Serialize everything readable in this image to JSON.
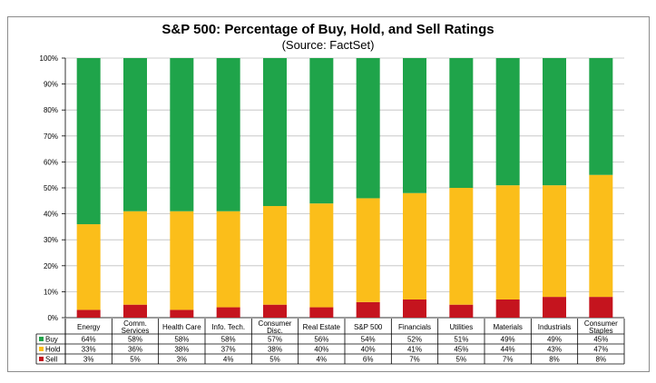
{
  "chart_data": {
    "type": "bar",
    "stacked": true,
    "title": "S&P 500: Percentage of Buy, Hold, and Sell Ratings",
    "subtitle": "(Source: FactSet)",
    "categories": [
      [
        "Energy"
      ],
      [
        "Comm.",
        "Services"
      ],
      [
        "Health Care"
      ],
      [
        "Info. Tech."
      ],
      [
        "Consumer",
        "Disc."
      ],
      [
        "Real Estate"
      ],
      [
        "S&P 500"
      ],
      [
        "Financials"
      ],
      [
        "Utilities"
      ],
      [
        "Materials"
      ],
      [
        "Industrials"
      ],
      [
        "Consumer",
        "Staples"
      ]
    ],
    "series": [
      {
        "name": "Buy",
        "color": "#1fa44a",
        "values": [
          64,
          58,
          58,
          58,
          57,
          56,
          54,
          52,
          51,
          49,
          49,
          45
        ],
        "labels": [
          "64%",
          "58%",
          "58%",
          "58%",
          "57%",
          "56%",
          "54%",
          "52%",
          "51%",
          "49%",
          "49%",
          "45%"
        ]
      },
      {
        "name": "Hold",
        "color": "#fbbe1a",
        "values": [
          33,
          36,
          38,
          37,
          38,
          40,
          40,
          41,
          45,
          44,
          43,
          47
        ],
        "labels": [
          "33%",
          "36%",
          "38%",
          "37%",
          "38%",
          "40%",
          "40%",
          "41%",
          "45%",
          "44%",
          "43%",
          "47%"
        ]
      },
      {
        "name": "Sell",
        "color": "#c5141e",
        "values": [
          3,
          5,
          3,
          4,
          5,
          4,
          6,
          7,
          5,
          7,
          8,
          8
        ],
        "labels": [
          "3%",
          "5%",
          "3%",
          "4%",
          "5%",
          "4%",
          "6%",
          "7%",
          "5%",
          "7%",
          "8%",
          "8%"
        ]
      }
    ],
    "ylim": [
      0,
      100
    ],
    "yticks": [
      "0%",
      "10%",
      "20%",
      "30%",
      "40%",
      "50%",
      "60%",
      "70%",
      "80%",
      "90%",
      "100%"
    ],
    "grid": true,
    "legend": "data-table-left"
  }
}
